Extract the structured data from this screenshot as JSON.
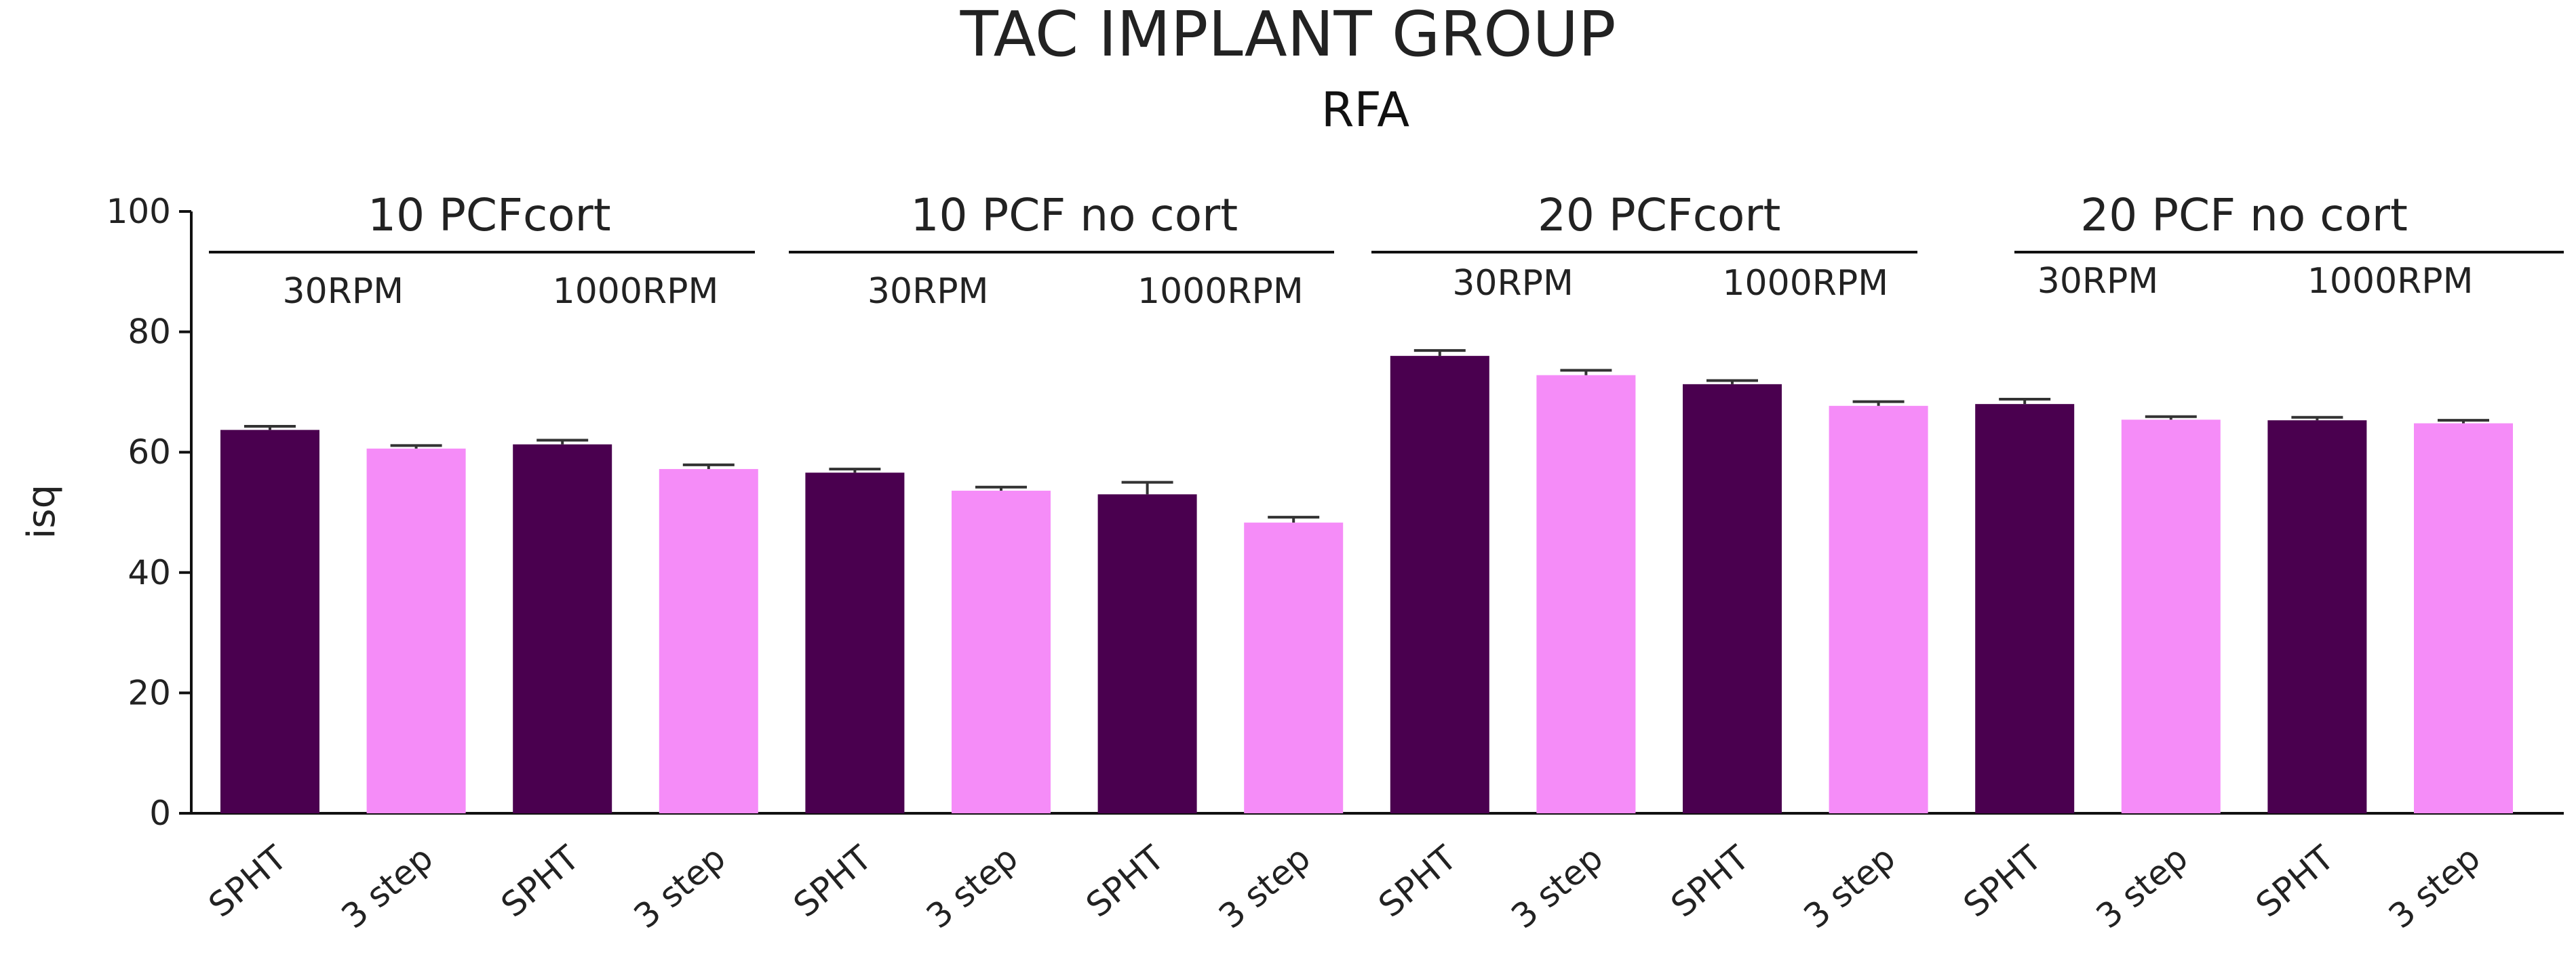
{
  "chart_data": {
    "type": "bar",
    "title": "TAC IMPLANT GROUP",
    "subtitle": "RFA",
    "ylabel": "isq",
    "xlabel": "",
    "ylim": [
      0,
      100
    ],
    "yticks": [
      0,
      20,
      40,
      60,
      80,
      100
    ],
    "categories": [
      "SPHT",
      "3 step",
      "SPHT",
      "3 step",
      "SPHT",
      "3 step",
      "SPHT",
      "3 step",
      "SPHT",
      "3 step",
      "SPHT",
      "3 step",
      "SPHT",
      "3 step",
      "SPHT",
      "3 step"
    ],
    "values": [
      63.7,
      60.6,
      61.3,
      57.2,
      56.6,
      53.6,
      53.0,
      48.3,
      76.0,
      72.8,
      71.3,
      67.7,
      68.0,
      65.4,
      65.3,
      64.8
    ],
    "errors": [
      0.6,
      0.5,
      0.7,
      0.7,
      0.6,
      0.6,
      2.0,
      0.9,
      0.9,
      0.8,
      0.6,
      0.7,
      0.8,
      0.5,
      0.5,
      0.5
    ],
    "colors": [
      "#4a004f",
      "#f58cf8",
      "#4a004f",
      "#f58cf8",
      "#4a004f",
      "#f58cf8",
      "#4a004f",
      "#f58cf8",
      "#4a004f",
      "#f58cf8",
      "#4a004f",
      "#f58cf8",
      "#4a004f",
      "#f58cf8",
      "#4a004f",
      "#f58cf8"
    ],
    "groups": [
      {
        "label": "10 PCFcort",
        "subgroups": [
          "30RPM",
          "1000RPM"
        ]
      },
      {
        "label": "10 PCF no cort",
        "subgroups": [
          "30RPM",
          "1000RPM"
        ]
      },
      {
        "label": "20 PCFcort",
        "subgroups": [
          "30RPM",
          "1000RPM"
        ]
      },
      {
        "label": "20 PCF no cort",
        "subgroups": [
          "30RPM",
          "1000RPM"
        ]
      }
    ],
    "grid": false,
    "legend": "none"
  }
}
